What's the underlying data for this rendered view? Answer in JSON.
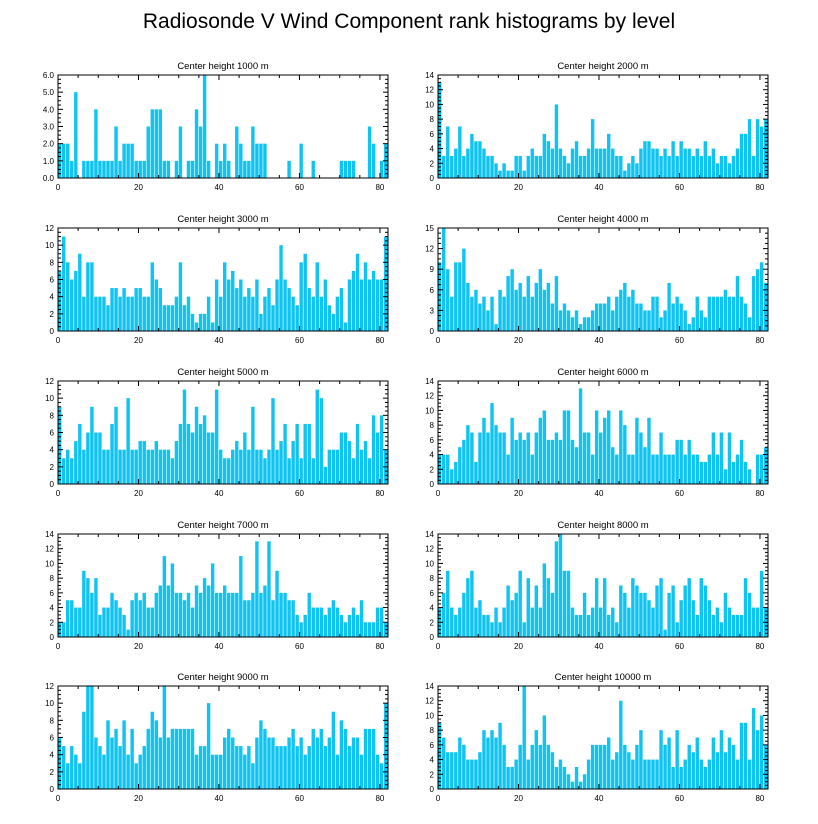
{
  "title": "Radiosonde V Wind Component rank histograms by level",
  "bar_color": "#10c4f2",
  "chart_data": [
    {
      "type": "bar",
      "title": "Center height 1000 m",
      "xlim": [
        0,
        82
      ],
      "ylim": [
        0,
        6
      ],
      "xticks": [
        "0",
        "20",
        "40",
        "60",
        "80"
      ],
      "yticks": [
        "0.0",
        "1.0",
        "2.0",
        "3.0",
        "4.0",
        "5.0",
        "6.0"
      ],
      "values": [
        2,
        2,
        2,
        1,
        5,
        0,
        1,
        1,
        1,
        4,
        1,
        1,
        1,
        1,
        3,
        1,
        2,
        2,
        2,
        1,
        1,
        1,
        3,
        4,
        4,
        4,
        1,
        1,
        0,
        1,
        3,
        0,
        1,
        1,
        4,
        3,
        6,
        1,
        0,
        2,
        1,
        2,
        1,
        0,
        3,
        2,
        1,
        1,
        3,
        2,
        2,
        2,
        0,
        0,
        0,
        0,
        0,
        1,
        0,
        0,
        2,
        0,
        0,
        1,
        0,
        0,
        0,
        0,
        0,
        0,
        1,
        1,
        1,
        1,
        0,
        0,
        0,
        3,
        2,
        0,
        1,
        2
      ]
    },
    {
      "type": "bar",
      "title": "Center height 2000 m",
      "xlim": [
        0,
        82
      ],
      "ylim": [
        0,
        14
      ],
      "xticks": [
        "0",
        "20",
        "40",
        "60",
        "80"
      ],
      "yticks": [
        "0",
        "2",
        "4",
        "6",
        "8",
        "10",
        "12",
        "14"
      ],
      "values": [
        13,
        3,
        7,
        3,
        4,
        7,
        3,
        4,
        6,
        5,
        5,
        4,
        3,
        3,
        2,
        1,
        2,
        1,
        1,
        3,
        3,
        1,
        3,
        4,
        3,
        3,
        6,
        5,
        4,
        10,
        4,
        3,
        2,
        4,
        5,
        3,
        3,
        4,
        8,
        4,
        4,
        4,
        6,
        4,
        3,
        3,
        1,
        2,
        3,
        2,
        4,
        5,
        5,
        4,
        4,
        3,
        4,
        3,
        5,
        3,
        5,
        4,
        4,
        3,
        4,
        3,
        5,
        3,
        4,
        2,
        3,
        3,
        2,
        3,
        4,
        6,
        6,
        8,
        3,
        8,
        7,
        8
      ]
    },
    {
      "type": "bar",
      "title": "Center height 3000 m",
      "xlim": [
        0,
        82
      ],
      "ylim": [
        0,
        12
      ],
      "xticks": [
        "0",
        "20",
        "40",
        "60",
        "80"
      ],
      "yticks": [
        "0",
        "2",
        "4",
        "6",
        "8",
        "10",
        "12"
      ],
      "values": [
        7,
        11,
        8,
        6,
        7,
        9,
        4,
        8,
        8,
        4,
        4,
        4,
        3,
        5,
        5,
        4,
        5,
        4,
        4,
        5,
        5,
        4,
        4,
        8,
        6,
        5,
        3,
        3,
        3,
        4,
        8,
        3,
        4,
        2,
        1,
        2,
        2,
        4,
        1,
        6,
        4,
        8,
        6,
        7,
        5,
        6,
        4,
        5,
        4,
        6,
        2,
        4,
        5,
        3,
        6,
        10,
        6,
        5,
        4,
        3,
        8,
        9,
        5,
        4,
        8,
        4,
        6,
        3,
        2,
        4,
        5,
        1,
        6,
        7,
        9,
        6,
        8,
        6,
        7,
        6,
        6,
        11
      ]
    },
    {
      "type": "bar",
      "title": "Center height 4000 m",
      "xlim": [
        0,
        82
      ],
      "ylim": [
        0,
        15
      ],
      "xticks": [
        "0",
        "20",
        "40",
        "60",
        "80"
      ],
      "yticks": [
        "0",
        "3",
        "6",
        "9",
        "12",
        "15"
      ],
      "values": [
        10,
        15,
        9,
        5,
        10,
        10,
        12,
        7,
        5,
        6,
        4,
        5,
        3,
        5,
        1,
        6,
        5,
        8,
        9,
        6,
        7,
        5,
        8,
        5,
        7,
        9,
        6,
        7,
        4,
        8,
        3,
        4,
        3,
        2,
        3,
        1,
        2,
        2,
        3,
        4,
        4,
        4,
        5,
        3,
        5,
        6,
        7,
        5,
        6,
        4,
        4,
        3,
        3,
        5,
        5,
        2,
        3,
        7,
        4,
        5,
        4,
        3,
        1,
        2,
        5,
        3,
        2,
        5,
        5,
        5,
        5,
        6,
        5,
        5,
        8,
        5,
        4,
        2,
        8,
        9,
        10,
        7
      ]
    },
    {
      "type": "bar",
      "title": "Center height 5000 m",
      "xlim": [
        0,
        82
      ],
      "ylim": [
        0,
        12
      ],
      "xticks": [
        "0",
        "20",
        "40",
        "60",
        "80"
      ],
      "yticks": [
        "0",
        "2",
        "4",
        "6",
        "8",
        "10",
        "12"
      ],
      "values": [
        9,
        3,
        4,
        3,
        5,
        7,
        4,
        6,
        9,
        6,
        6,
        4,
        4,
        7,
        9,
        4,
        4,
        10,
        4,
        4,
        5,
        5,
        4,
        4,
        5,
        4,
        4,
        4,
        3,
        5,
        7,
        11,
        7,
        6,
        9,
        7,
        8,
        6,
        6,
        11,
        4,
        3,
        3,
        4,
        5,
        4,
        6,
        4,
        9,
        4,
        4,
        3,
        4,
        10,
        4,
        5,
        7,
        3,
        5,
        7,
        3,
        7,
        7,
        3,
        11,
        10,
        2,
        4,
        4,
        4,
        6,
        6,
        5,
        3,
        7,
        4,
        5,
        3,
        8,
        6,
        8,
        4
      ]
    },
    {
      "type": "bar",
      "title": "Center height 6000 m",
      "xlim": [
        0,
        82
      ],
      "ylim": [
        0,
        14
      ],
      "xticks": [
        "0",
        "20",
        "40",
        "60",
        "80"
      ],
      "yticks": [
        "0",
        "2",
        "4",
        "6",
        "8",
        "10",
        "12",
        "14"
      ],
      "values": [
        4,
        4,
        4,
        2,
        3,
        5,
        6,
        8,
        7,
        3,
        7,
        9,
        7,
        11,
        8,
        7,
        7,
        4,
        9,
        6,
        7,
        6,
        7,
        4,
        7,
        9,
        10,
        6,
        6,
        7,
        6,
        10,
        10,
        6,
        5,
        13,
        7,
        7,
        4,
        10,
        7,
        9,
        10,
        5,
        4,
        10,
        8,
        4,
        4,
        9,
        7,
        5,
        9,
        4,
        4,
        7,
        4,
        4,
        4,
        6,
        6,
        4,
        6,
        4,
        4,
        3,
        3,
        4,
        7,
        4,
        7,
        2,
        7,
        3,
        4,
        6,
        3,
        2,
        0,
        4,
        4,
        5
      ]
    },
    {
      "type": "bar",
      "title": "Center height 7000 m",
      "xlim": [
        0,
        82
      ],
      "ylim": [
        0,
        14
      ],
      "xticks": [
        "0",
        "20",
        "40",
        "60",
        "80"
      ],
      "yticks": [
        "0",
        "2",
        "4",
        "6",
        "8",
        "10",
        "12",
        "14"
      ],
      "values": [
        2,
        2,
        5,
        5,
        4,
        4,
        9,
        8,
        6,
        8,
        3,
        4,
        4,
        6,
        5,
        4,
        3,
        1,
        5,
        6,
        5,
        6,
        4,
        4,
        6,
        7,
        11,
        7,
        10,
        6,
        6,
        5,
        6,
        4,
        7,
        6,
        8,
        7,
        10,
        6,
        6,
        7,
        6,
        6,
        6,
        11,
        5,
        5,
        6,
        13,
        6,
        7,
        13,
        5,
        9,
        6,
        6,
        5,
        5,
        3,
        2,
        3,
        6,
        4,
        4,
        4,
        3,
        4,
        5,
        4,
        3,
        2,
        3,
        4,
        3,
        5,
        2,
        2,
        2,
        4,
        4,
        2
      ]
    },
    {
      "type": "bar",
      "title": "Center height 8000 m",
      "xlim": [
        0,
        82
      ],
      "ylim": [
        0,
        14
      ],
      "xticks": [
        "0",
        "20",
        "40",
        "60",
        "80"
      ],
      "yticks": [
        "0",
        "2",
        "4",
        "6",
        "8",
        "10",
        "12",
        "14"
      ],
      "values": [
        4,
        6,
        9,
        4,
        3,
        4,
        6,
        8,
        9,
        4,
        5,
        3,
        3,
        2,
        4,
        2,
        4,
        7,
        5,
        6,
        9,
        2,
        8,
        4,
        7,
        4,
        10,
        8,
        6,
        13,
        14,
        9,
        9,
        4,
        3,
        3,
        6,
        3,
        4,
        8,
        4,
        8,
        3,
        4,
        2,
        7,
        6,
        4,
        8,
        7,
        6,
        6,
        5,
        4,
        7,
        8,
        1,
        6,
        7,
        2,
        5,
        7,
        8,
        5,
        3,
        8,
        7,
        5,
        3,
        4,
        2,
        6,
        4,
        3,
        3,
        3,
        8,
        6,
        4,
        4,
        9,
        4
      ]
    },
    {
      "type": "bar",
      "title": "Center height 9000 m",
      "xlim": [
        0,
        82
      ],
      "ylim": [
        0,
        12
      ],
      "xticks": [
        "0",
        "20",
        "40",
        "60",
        "80"
      ],
      "yticks": [
        "0",
        "2",
        "4",
        "6",
        "8",
        "10",
        "12"
      ],
      "values": [
        6,
        5,
        3,
        5,
        4,
        3,
        9,
        12,
        12,
        6,
        5,
        4,
        8,
        6,
        7,
        5,
        8,
        4,
        7,
        3,
        4,
        5,
        7,
        9,
        8,
        6,
        12,
        6,
        7,
        7,
        7,
        7,
        7,
        7,
        4,
        5,
        5,
        10,
        4,
        4,
        4,
        6,
        7,
        6,
        5,
        5,
        4,
        5,
        3,
        6,
        8,
        7,
        6,
        6,
        5,
        5,
        5,
        6,
        7,
        5,
        6,
        4,
        5,
        7,
        6,
        7,
        5,
        6,
        9,
        4,
        8,
        7,
        5,
        6,
        6,
        4,
        7,
        7,
        7,
        4,
        3,
        10
      ]
    },
    {
      "type": "bar",
      "title": "Center height 10000 m",
      "xlim": [
        0,
        82
      ],
      "ylim": [
        0,
        14
      ],
      "xticks": [
        "0",
        "20",
        "40",
        "60",
        "80"
      ],
      "yticks": [
        "0",
        "2",
        "4",
        "6",
        "8",
        "10",
        "12",
        "14"
      ],
      "values": [
        9,
        7,
        5,
        5,
        5,
        7,
        6,
        4,
        4,
        4,
        5,
        8,
        7,
        8,
        7,
        9,
        6,
        3,
        3,
        4,
        6,
        14,
        4,
        6,
        8,
        6,
        10,
        6,
        5,
        3,
        4,
        3,
        2,
        1,
        3,
        1,
        2,
        4,
        6,
        6,
        6,
        6,
        7,
        4,
        5,
        12,
        6,
        5,
        4,
        6,
        8,
        4,
        4,
        4,
        4,
        8,
        6,
        7,
        3,
        8,
        3,
        4,
        6,
        5,
        7,
        4,
        3,
        4,
        7,
        5,
        8,
        5,
        7,
        6,
        4,
        9,
        9,
        4,
        11,
        8,
        10,
        6
      ]
    }
  ]
}
